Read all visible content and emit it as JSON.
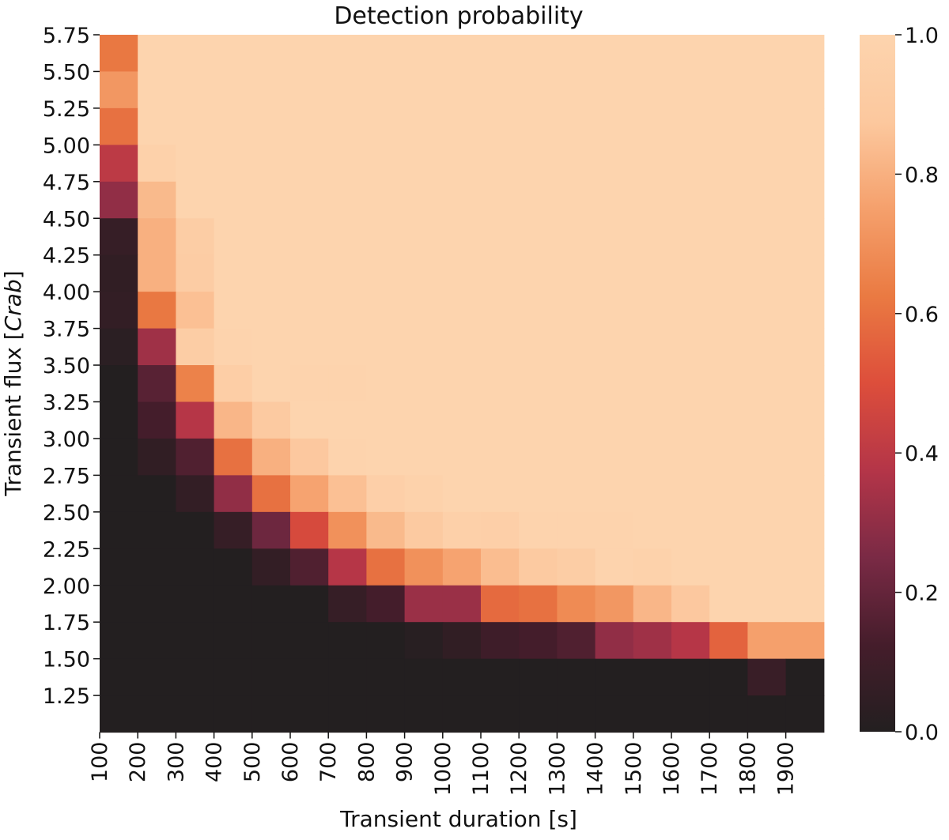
{
  "chart_data": {
    "type": "heatmap",
    "title": "Detection probability",
    "xlabel": "Transient duration [s]",
    "ylabel": {
      "prefix": "Transient flux [",
      "italic": "Crab",
      "suffix": "]"
    },
    "x_ticks": [
      "100",
      "200",
      "300",
      "400",
      "500",
      "600",
      "700",
      "800",
      "900",
      "1000",
      "1100",
      "1200",
      "1300",
      "1400",
      "1500",
      "1600",
      "1700",
      "1800",
      "1900"
    ],
    "y_ticks": [
      "5.75",
      "5.50",
      "5.25",
      "5.00",
      "4.75",
      "4.50",
      "4.25",
      "4.00",
      "3.75",
      "3.50",
      "3.25",
      "3.00",
      "2.75",
      "2.50",
      "2.25",
      "2.00",
      "1.75",
      "1.50",
      "1.25"
    ],
    "colorbar": {
      "min": 0.0,
      "max": 1.0,
      "ticks": [
        "0.0",
        "0.2",
        "0.4",
        "0.6",
        "0.8",
        "1.0"
      ],
      "colors": [
        "#231f20",
        "#451d2b",
        "#7a2a45",
        "#b43548",
        "#dd4e3b",
        "#ea7a42",
        "#f5a06c",
        "#fcc89e",
        "#fdd4ae"
      ]
    },
    "values": [
      [
        0.62,
        1.0,
        1.0,
        1.0,
        1.0,
        1.0,
        1.0,
        1.0,
        1.0,
        1.0,
        1.0,
        1.0,
        1.0,
        1.0,
        1.0,
        1.0,
        1.0,
        1.0,
        1.0
      ],
      [
        0.72,
        1.0,
        1.0,
        1.0,
        1.0,
        1.0,
        1.0,
        1.0,
        1.0,
        1.0,
        1.0,
        1.0,
        1.0,
        1.0,
        1.0,
        1.0,
        1.0,
        1.0,
        1.0
      ],
      [
        0.6,
        1.0,
        1.0,
        1.0,
        1.0,
        1.0,
        1.0,
        1.0,
        1.0,
        1.0,
        1.0,
        1.0,
        1.0,
        1.0,
        1.0,
        1.0,
        1.0,
        1.0,
        1.0
      ],
      [
        0.4,
        0.97,
        1.0,
        1.0,
        1.0,
        1.0,
        1.0,
        1.0,
        1.0,
        1.0,
        1.0,
        1.0,
        1.0,
        1.0,
        1.0,
        1.0,
        1.0,
        1.0,
        1.0
      ],
      [
        0.3,
        0.83,
        1.0,
        1.0,
        1.0,
        1.0,
        1.0,
        1.0,
        1.0,
        1.0,
        1.0,
        1.0,
        1.0,
        1.0,
        1.0,
        1.0,
        1.0,
        1.0,
        1.0
      ],
      [
        0.07,
        0.8,
        0.93,
        1.0,
        1.0,
        1.0,
        1.0,
        1.0,
        1.0,
        1.0,
        1.0,
        1.0,
        1.0,
        1.0,
        1.0,
        1.0,
        1.0,
        1.0,
        1.0
      ],
      [
        0.05,
        0.8,
        0.92,
        1.0,
        1.0,
        1.0,
        1.0,
        1.0,
        1.0,
        1.0,
        1.0,
        1.0,
        1.0,
        1.0,
        1.0,
        1.0,
        1.0,
        1.0,
        1.0
      ],
      [
        0.06,
        0.62,
        0.85,
        1.0,
        1.0,
        1.0,
        1.0,
        1.0,
        1.0,
        1.0,
        1.0,
        1.0,
        1.0,
        1.0,
        1.0,
        1.0,
        1.0,
        1.0,
        1.0
      ],
      [
        0.03,
        0.33,
        0.93,
        0.99,
        1.0,
        1.0,
        1.0,
        1.0,
        1.0,
        1.0,
        1.0,
        1.0,
        1.0,
        1.0,
        1.0,
        1.0,
        1.0,
        1.0,
        1.0
      ],
      [
        0.0,
        0.17,
        0.65,
        0.94,
        1.0,
        0.99,
        0.99,
        1.0,
        1.0,
        1.0,
        1.0,
        1.0,
        1.0,
        1.0,
        1.0,
        1.0,
        1.0,
        1.0,
        1.0
      ],
      [
        0.0,
        0.12,
        0.38,
        0.82,
        0.9,
        1.0,
        1.0,
        1.0,
        1.0,
        1.0,
        1.0,
        1.0,
        1.0,
        1.0,
        1.0,
        1.0,
        1.0,
        1.0,
        1.0
      ],
      [
        0.0,
        0.05,
        0.15,
        0.6,
        0.8,
        0.88,
        0.99,
        1.0,
        1.0,
        1.0,
        1.0,
        1.0,
        1.0,
        1.0,
        1.0,
        1.0,
        1.0,
        1.0,
        1.0
      ],
      [
        0.0,
        0.0,
        0.06,
        0.3,
        0.6,
        0.76,
        0.85,
        0.95,
        0.98,
        1.0,
        1.0,
        1.0,
        1.0,
        1.0,
        1.0,
        1.0,
        1.0,
        1.0,
        1.0
      ],
      [
        0.0,
        0.0,
        0.0,
        0.07,
        0.22,
        0.48,
        0.7,
        0.83,
        0.9,
        0.96,
        0.95,
        0.99,
        0.99,
        0.99,
        1.0,
        1.0,
        1.0,
        1.0,
        1.0
      ],
      [
        0.0,
        0.0,
        0.0,
        0.0,
        0.06,
        0.15,
        0.38,
        0.6,
        0.7,
        0.76,
        0.84,
        0.9,
        0.93,
        0.99,
        0.98,
        1.0,
        1.0,
        1.0,
        1.0
      ],
      [
        0.0,
        0.0,
        0.0,
        0.0,
        0.0,
        0.0,
        0.07,
        0.12,
        0.32,
        0.32,
        0.58,
        0.6,
        0.68,
        0.72,
        0.82,
        0.88,
        1.0,
        1.0,
        1.0
      ],
      [
        0.0,
        0.0,
        0.0,
        0.0,
        0.0,
        0.0,
        0.0,
        0.0,
        0.02,
        0.05,
        0.1,
        0.12,
        0.15,
        0.3,
        0.33,
        0.38,
        0.56,
        0.75,
        0.75
      ],
      [
        0.0,
        0.0,
        0.0,
        0.0,
        0.0,
        0.0,
        0.0,
        0.0,
        0.0,
        0.0,
        0.0,
        0.0,
        0.0,
        0.0,
        0.0,
        0.0,
        0.0,
        0.08,
        0.0
      ],
      [
        0.0,
        0.0,
        0.0,
        0.0,
        0.0,
        0.0,
        0.0,
        0.0,
        0.0,
        0.0,
        0.0,
        0.0,
        0.0,
        0.0,
        0.0,
        0.0,
        0.0,
        0.0,
        0.0
      ]
    ]
  }
}
